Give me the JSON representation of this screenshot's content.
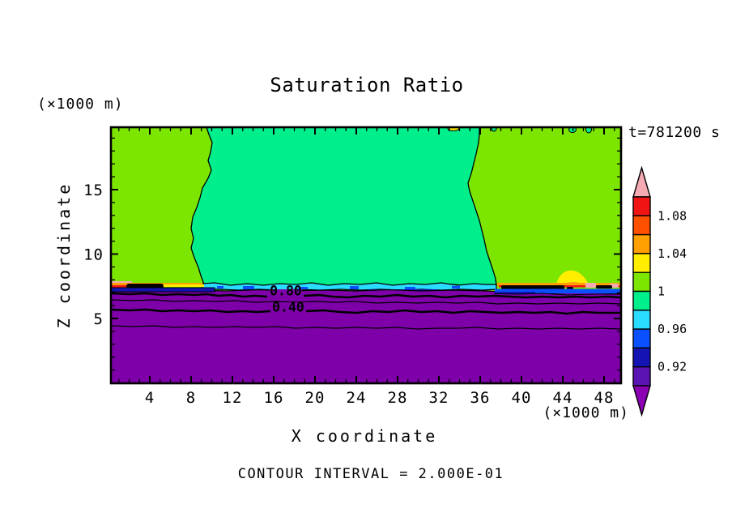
{
  "title": "Saturation Ratio",
  "time_label": "t=781200 s",
  "footer_note": "CONTOUR INTERVAL = 2.000E-01",
  "axes": {
    "x": {
      "label": "X coordinate",
      "unit": "(×1000 m)",
      "ticks": [
        "4",
        "8",
        "12",
        "16",
        "20",
        "24",
        "28",
        "32",
        "36",
        "40",
        "44",
        "48"
      ]
    },
    "y": {
      "label": "Z coordinate",
      "unit": "(×1000 m)",
      "ticks": [
        "15",
        "10",
        "5"
      ]
    }
  },
  "colorbar": {
    "labels": [
      "1.08",
      "1.04",
      "1",
      "0.96",
      "0.92"
    ],
    "colors": [
      "#F01414",
      "#FF5000",
      "#FFA000",
      "#FFEE00",
      "#7CE600",
      "#00EE8C",
      "#2ADCFF",
      "#0A50FF",
      "#1414B4",
      "#5A14B4"
    ],
    "arrow_top_color": "#F5AAB4",
    "arrow_bottom_color": "#8C00B4"
  },
  "contour_labels": {
    "upper": "0.80",
    "lower": "0.40"
  },
  "chart_data": {
    "type": "contour",
    "title": "Saturation Ratio",
    "time": "t=781200 s",
    "xlabel": "X coordinate (×1000 m)",
    "ylabel": "Z coordinate (×1000 m)",
    "xlim": [
      0,
      50
    ],
    "ylim": [
      0,
      20
    ],
    "x_ticks": [
      4,
      8,
      12,
      16,
      20,
      24,
      28,
      32,
      36,
      40,
      44,
      48
    ],
    "y_ticks": [
      5,
      10,
      15
    ],
    "line_contour_interval": 0.2,
    "labeled_line_contours": [
      {
        "value": 0.8,
        "z_km": 7.0,
        "label": "0.80"
      },
      {
        "value": 0.6,
        "z_km": 6.5
      },
      {
        "value": 0.4,
        "z_km": 5.7,
        "label": "0.40"
      },
      {
        "value": 0.2,
        "z_km": 4.4
      }
    ],
    "fill_scale": {
      "levels": [
        0.9,
        0.92,
        0.94,
        0.96,
        0.98,
        1.0,
        1.02,
        1.04,
        1.06,
        1.08,
        1.1
      ],
      "colors_low_to_high": [
        "#8C00B4",
        "#5A14B4",
        "#1414B4",
        "#0A50FF",
        "#2ADCFF",
        "#00EE8C",
        "#7CE600",
        "#FFEE00",
        "#FFA000",
        "#FF5000",
        "#F01414",
        "#F5AAB4"
      ],
      "labeled_levels": [
        0.92,
        0.96,
        1,
        1.04,
        1.08
      ]
    },
    "regions": [
      {
        "name": "upper-left",
        "x_km": [
          0,
          9.5
        ],
        "z_km": [
          7.6,
          20
        ],
        "value_range": [
          1.0,
          1.02
        ],
        "color": "#7CE600"
      },
      {
        "name": "upper-center",
        "x_km": [
          9.5,
          36
        ],
        "z_km": [
          7.5,
          20
        ],
        "value_range": [
          0.98,
          1.0
        ],
        "color": "#00EE8C"
      },
      {
        "name": "upper-right",
        "x_km": [
          36,
          50
        ],
        "z_km": [
          7.6,
          20
        ],
        "value_range": [
          1.0,
          1.02
        ],
        "color": "#7CE600"
      },
      {
        "name": "cloud-top-band-left",
        "x_km": [
          0,
          9
        ],
        "z_km": [
          7.2,
          7.7
        ],
        "value_range": [
          0.92,
          1.12
        ],
        "note": "thin pink/orange/red/black supersaturation streaks"
      },
      {
        "name": "cloud-top-band-center",
        "x_km": [
          9,
          37
        ],
        "z_km": [
          7.2,
          7.6
        ],
        "value_range": [
          0.94,
          0.98
        ],
        "note": "cyan/blue subsaturated band"
      },
      {
        "name": "cloud-top-band-right",
        "x_km": [
          37,
          50
        ],
        "z_km": [
          7.2,
          7.8
        ],
        "value_range": [
          0.92,
          1.12
        ],
        "note": "orange/red/black streaks with yellow plume near x=45"
      },
      {
        "name": "lower-domain",
        "x_km": [
          0,
          50
        ],
        "z_km": [
          0,
          7
        ],
        "value_range": [
          0.0,
          0.9
        ],
        "color": "#7D00A8",
        "note": "saturation decreases toward ground; line contours at 0.8, 0.6, 0.4, 0.2"
      }
    ]
  }
}
